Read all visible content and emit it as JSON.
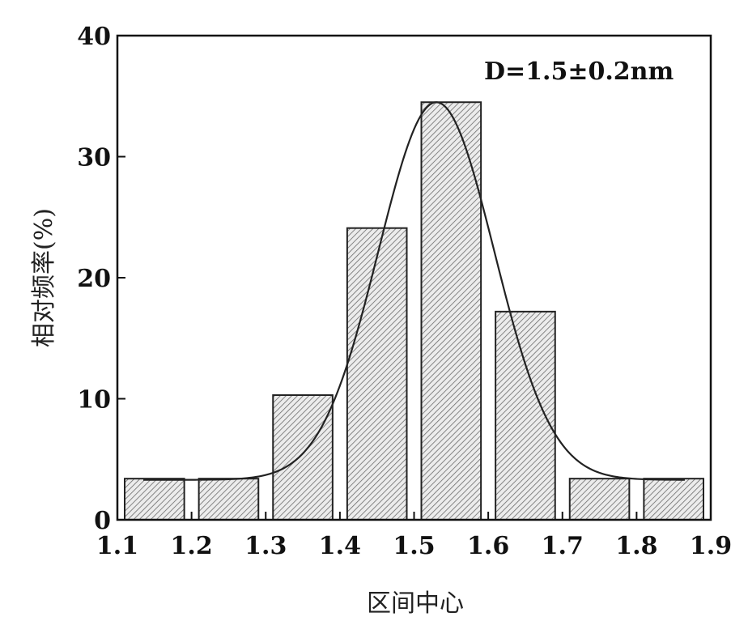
{
  "chart_data": {
    "type": "bar",
    "categories": [
      "1.15",
      "1.25",
      "1.35",
      "1.45",
      "1.55",
      "1.65",
      "1.75",
      "1.85"
    ],
    "bin_edges": [
      1.1,
      1.2,
      1.3,
      1.4,
      1.5,
      1.6,
      1.7,
      1.8,
      1.9
    ],
    "values": [
      3.4,
      3.4,
      10.3,
      24.1,
      34.5,
      17.2,
      3.4,
      3.4
    ],
    "fit_curve": {
      "type": "gaussian",
      "mean": 1.53,
      "sigma": 0.078,
      "amplitude": 31.2,
      "baseline": 3.3
    },
    "xlabel": "区间中心",
    "ylabel": "相对频率(%)",
    "annotation": "D=1.5±0.2nm",
    "xlim": [
      1.1,
      1.9
    ],
    "ylim": [
      0,
      40
    ],
    "x_ticks": [
      "1.1",
      "1.2",
      "1.3",
      "1.4",
      "1.5",
      "1.6",
      "1.7",
      "1.8",
      "1.9"
    ],
    "y_ticks": [
      "0",
      "10",
      "20",
      "30",
      "40"
    ],
    "grid": false,
    "bar_fill": "hatched"
  }
}
